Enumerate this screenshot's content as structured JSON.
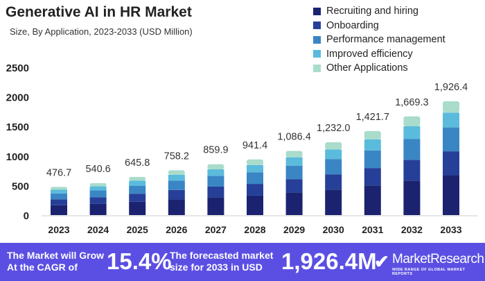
{
  "chart_data": {
    "type": "bar",
    "stacked": true,
    "title": "Generative AI in HR Market",
    "subtitle": "Size, By Application, 2023-2033 (USD Million)",
    "xlabel": "",
    "ylabel": "",
    "ylim": [
      0,
      2500
    ],
    "yticks": [
      "0",
      "500",
      "1000",
      "1500",
      "2000",
      "2500"
    ],
    "categories": [
      "2023",
      "2024",
      "2025",
      "2026",
      "2027",
      "2028",
      "2029",
      "2030",
      "2031",
      "2032",
      "2033"
    ],
    "totals": [
      "476.7",
      "540.6",
      "645.8",
      "758.2",
      "859.9",
      "941.4",
      "1,086.4",
      "1,232.0",
      "1,421.7",
      "1,669.3",
      "1,926.4"
    ],
    "series": [
      {
        "name": "Recruiting and hiring",
        "color": "#1b2370",
        "values": [
          166.8,
          189.2,
          226.0,
          265.4,
          301.0,
          329.5,
          380.2,
          431.2,
          497.6,
          584.3,
          674.2
        ]
      },
      {
        "name": "Onboarding",
        "color": "#263f98",
        "values": [
          100.1,
          113.5,
          135.6,
          159.2,
          180.6,
          197.7,
          228.1,
          258.7,
          298.6,
          350.5,
          404.5
        ]
      },
      {
        "name": "Performance management",
        "color": "#3a86c4",
        "values": [
          100.1,
          113.5,
          135.6,
          159.2,
          180.6,
          197.7,
          228.1,
          258.7,
          298.6,
          350.5,
          404.5
        ]
      },
      {
        "name": "Improved efficiency",
        "color": "#5bbbdc",
        "values": [
          62.0,
          70.3,
          84.0,
          98.6,
          111.8,
          122.4,
          141.2,
          160.2,
          184.8,
          217.0,
          250.4
        ]
      },
      {
        "name": "Other Applications",
        "color": "#a9dccb",
        "values": [
          47.7,
          54.1,
          64.6,
          75.8,
          85.9,
          94.1,
          108.8,
          123.2,
          142.1,
          166.9,
          192.8
        ]
      }
    ],
    "legend": "top-right"
  },
  "banner": {
    "cagr_text_1": "The Market will Grow",
    "cagr_text_2": "At the CAGR of",
    "cagr": "15.4%",
    "forecast_text_1": "The forecasted market",
    "forecast_text_2": "size for 2033 in USD",
    "forecast": "1,926.4M",
    "brand": "MarketResearch",
    "brand_badge": "biz",
    "brand_tagline": "WIDE RANGE OF GLOBAL MARKET REPORTS"
  }
}
